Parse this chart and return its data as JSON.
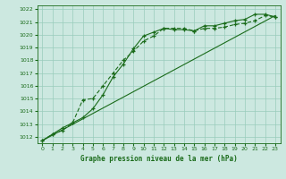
{
  "bg_color": "#cce8e0",
  "grid_color": "#99ccbb",
  "line_color": "#1a6b1a",
  "xlabel": "Graphe pression niveau de la mer (hPa)",
  "xlim": [
    -0.5,
    23.5
  ],
  "ylim": [
    1011.5,
    1022.3
  ],
  "xticks": [
    0,
    1,
    2,
    3,
    4,
    5,
    6,
    7,
    8,
    9,
    10,
    11,
    12,
    13,
    14,
    15,
    16,
    17,
    18,
    19,
    20,
    21,
    22,
    23
  ],
  "yticks": [
    1012,
    1013,
    1014,
    1015,
    1016,
    1017,
    1018,
    1019,
    1020,
    1021,
    1022
  ],
  "series1_x": [
    0,
    1,
    2,
    3,
    4,
    5,
    6,
    7,
    8,
    9,
    10,
    11,
    12,
    13,
    14,
    15,
    16,
    17,
    18,
    19,
    20,
    21,
    22,
    23
  ],
  "series1_y": [
    1011.7,
    1012.2,
    1012.5,
    1013.1,
    1014.9,
    1015.0,
    1016.0,
    1017.0,
    1018.0,
    1018.7,
    1019.5,
    1019.9,
    1020.5,
    1020.5,
    1020.5,
    1020.3,
    1020.5,
    1020.5,
    1020.6,
    1020.8,
    1020.9,
    1021.1,
    1021.5,
    1021.4
  ],
  "series2_x": [
    0,
    1,
    2,
    3,
    4,
    5,
    6,
    7,
    8,
    9,
    10,
    11,
    12,
    13,
    14,
    15,
    16,
    17,
    18,
    19,
    20,
    21,
    22,
    23
  ],
  "series2_y": [
    1011.7,
    1012.2,
    1012.7,
    1013.1,
    1013.5,
    1014.2,
    1015.3,
    1016.7,
    1017.7,
    1018.9,
    1019.9,
    1020.2,
    1020.5,
    1020.4,
    1020.4,
    1020.3,
    1020.7,
    1020.7,
    1020.9,
    1021.1,
    1021.2,
    1021.6,
    1021.6,
    1021.4
  ],
  "trend_x": [
    0,
    23
  ],
  "trend_y": [
    1011.7,
    1021.5
  ]
}
